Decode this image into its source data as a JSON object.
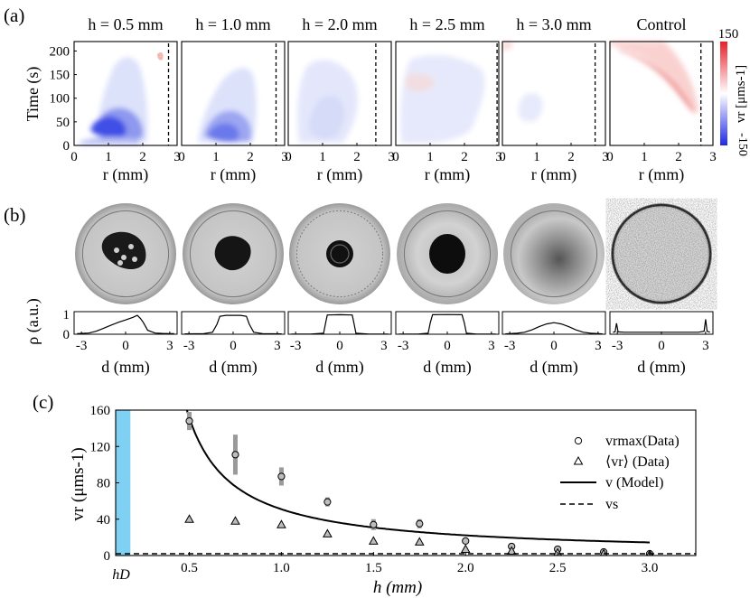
{
  "panel_a": {
    "label": "(a)",
    "titles": [
      "h = 0.5 mm",
      "h = 1.0 mm",
      "h = 2.0 mm",
      "h = 2.5 mm",
      "h = 3.0 mm",
      "Control"
    ],
    "ylabel": "Time (s)",
    "xlabel": "r (mm)",
    "yticks": [
      "0",
      "50",
      "100",
      "150",
      "200"
    ],
    "xticks": [
      "0",
      "1",
      "2",
      "3"
    ],
    "colorbar": {
      "max": "150",
      "min": "-150",
      "label": "vr [μms-1]",
      "max_color": "#e8202a",
      "min_color": "#1e28e6"
    }
  },
  "panel_b": {
    "label": "(b)",
    "ylabel": "ρ (a.u.)",
    "xlabel": "d (mm)",
    "yticks": [
      "0",
      "1"
    ],
    "xticks": [
      "-3",
      "0",
      "3"
    ]
  },
  "panel_c": {
    "label": "(c)",
    "ylabel": "vr (μms-1)",
    "xlabel": "h (mm)",
    "hD_label": "hD",
    "yticks": [
      "0",
      "40",
      "80",
      "120",
      "160"
    ],
    "xticks": [
      "0.5",
      "1.0",
      "1.5",
      "2.0",
      "2.5",
      "3.0"
    ],
    "legend": [
      "vrmax(Data)",
      "⟨vr⟩ (Data)",
      "v (Model)",
      "vs"
    ],
    "band_color": "#7fd0f2"
  },
  "chart_data": [
    {
      "type": "heatmap",
      "panel": "a",
      "xlabel": "r (mm)",
      "ylabel": "Time (s)",
      "xlim": [
        0,
        3
      ],
      "ylim": [
        0,
        220
      ],
      "panels": [
        {
          "title": "h = 0.5 mm",
          "boundary_r": 2.75,
          "sign": -1,
          "peak_vr": -150
        },
        {
          "title": "h = 1.0 mm",
          "boundary_r": 2.75,
          "sign": -1,
          "peak_vr": -110
        },
        {
          "title": "h = 2.0 mm",
          "boundary_r": 2.55,
          "sign": -1,
          "peak_vr": -25
        },
        {
          "title": "h = 2.5 mm",
          "boundary_r": 2.95,
          "sign": -1,
          "peak_vr": -15
        },
        {
          "title": "h = 3.0 mm",
          "boundary_r": 2.7,
          "sign": -1,
          "peak_vr": -10
        },
        {
          "title": "Control",
          "boundary_r": 2.65,
          "sign": 1,
          "peak_vr": 60
        }
      ],
      "colorbar_range": [
        -150,
        150
      ]
    },
    {
      "type": "line",
      "panel": "b",
      "xlabel": "d (mm)",
      "ylabel": "ρ (a.u.)",
      "xlim": [
        -3.5,
        3.5
      ],
      "ylim": [
        0,
        1
      ],
      "profiles": [
        {
          "x": [
            -3.3,
            -2.5,
            -2.0,
            -1.5,
            -1.0,
            -0.5,
            0,
            0.5,
            0.8,
            1.0,
            1.2,
            1.5,
            2.0,
            2.5,
            3.0,
            3.3
          ],
          "y": [
            0.03,
            0.06,
            0.15,
            0.3,
            0.45,
            0.6,
            0.72,
            0.85,
            0.95,
            0.8,
            0.6,
            0.2,
            0.06,
            0.04,
            0.03,
            0.03
          ]
        },
        {
          "x": [
            -3.3,
            -2.0,
            -1.4,
            -1.1,
            -0.9,
            -0.5,
            0,
            0.5,
            0.9,
            1.1,
            1.4,
            2.0,
            3.3
          ],
          "y": [
            0.02,
            0.03,
            0.1,
            0.5,
            0.9,
            0.95,
            0.95,
            0.95,
            0.9,
            0.5,
            0.1,
            0.03,
            0.02
          ]
        },
        {
          "x": [
            -3.3,
            -2.0,
            -1.1,
            -0.95,
            -0.85,
            0,
            0.85,
            0.95,
            1.1,
            2.0,
            3.3
          ],
          "y": [
            0.01,
            0.01,
            0.05,
            0.6,
            0.97,
            0.98,
            0.97,
            0.6,
            0.05,
            0.01,
            0.01
          ]
        },
        {
          "x": [
            -3.3,
            -2.0,
            -1.3,
            -1.15,
            -1.0,
            0,
            1.0,
            1.15,
            1.3,
            2.0,
            3.3
          ],
          "y": [
            0.01,
            0.01,
            0.05,
            0.6,
            0.98,
            0.99,
            0.98,
            0.6,
            0.05,
            0.01,
            0.01
          ]
        },
        {
          "x": [
            -3.3,
            -2.5,
            -2.0,
            -1.5,
            -1.0,
            -0.5,
            0,
            0.5,
            1.0,
            1.5,
            2.0,
            2.5,
            3.3
          ],
          "y": [
            0.02,
            0.05,
            0.1,
            0.22,
            0.38,
            0.52,
            0.58,
            0.52,
            0.38,
            0.22,
            0.1,
            0.05,
            0.02
          ]
        },
        {
          "x": [
            -3.3,
            -3.15,
            -3.05,
            -2.95,
            -2.5,
            -1.5,
            0,
            1.5,
            2.5,
            2.9,
            3.0,
            3.1,
            3.3
          ],
          "y": [
            0.1,
            0.12,
            0.55,
            0.12,
            0.1,
            0.1,
            0.1,
            0.1,
            0.1,
            0.15,
            0.75,
            0.15,
            0.1
          ]
        }
      ]
    },
    {
      "type": "scatter",
      "panel": "c",
      "xlabel": "h (mm)",
      "ylabel": "vr (μms-1)",
      "xlim": [
        0.1,
        3.25
      ],
      "ylim": [
        0,
        160
      ],
      "series": [
        {
          "name": "vrmax(Data)",
          "x": [
            0.5,
            0.75,
            1.0,
            1.25,
            1.5,
            1.75,
            2.0,
            2.25,
            2.5,
            2.75,
            3.0
          ],
          "y": [
            148,
            111,
            87,
            59,
            34,
            35,
            16,
            10,
            7,
            4,
            2
          ],
          "err": [
            10,
            22,
            10,
            5,
            6,
            5,
            3,
            2,
            2,
            1.5,
            1
          ]
        },
        {
          "name": "⟨vr⟩ (Data)",
          "x": [
            0.5,
            0.75,
            1.0,
            1.25,
            1.5,
            1.75,
            2.0,
            2.25,
            2.5,
            2.75,
            3.0
          ],
          "y": [
            40,
            38,
            34,
            24,
            16,
            15,
            7,
            5,
            3,
            2,
            1
          ]
        },
        {
          "name": "v (Model)",
          "model": "v = 0.7 + 37.7 / (h - 0.25)",
          "x_range": [
            0.48,
            3.0
          ]
        },
        {
          "name": "vs",
          "value": 2
        }
      ],
      "band": {
        "label": "hD",
        "x": [
          0.1,
          0.18
        ]
      }
    }
  ]
}
